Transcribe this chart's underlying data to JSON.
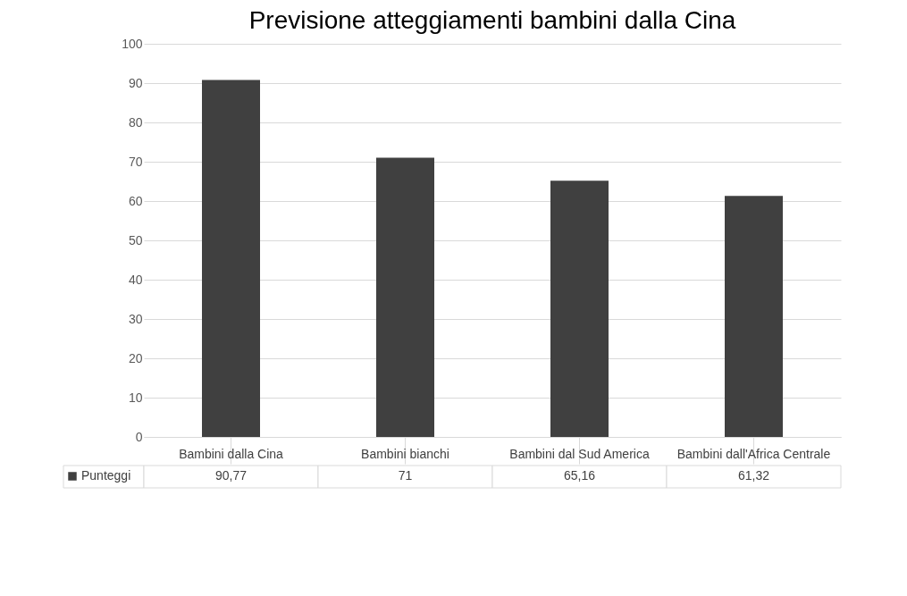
{
  "chart_data": {
    "type": "bar",
    "title": "Previsione atteggiamenti bambini dalla Cina",
    "categories": [
      "Bambini dalla Cina",
      "Bambini bianchi",
      "Bambini dal Sud America",
      "Bambini dall'Africa Centrale"
    ],
    "series": [
      {
        "name": "Punteggi",
        "color": "#404040",
        "values": [
          90.77,
          71,
          65.16,
          61.32
        ],
        "value_labels": [
          "90,77",
          "71",
          "65,16",
          "61,32"
        ]
      }
    ],
    "ylim": [
      0,
      100
    ],
    "yticks": [
      0,
      10,
      20,
      30,
      40,
      50,
      60,
      70,
      80,
      90,
      100
    ],
    "grid": "y",
    "legend": "bottom left"
  }
}
